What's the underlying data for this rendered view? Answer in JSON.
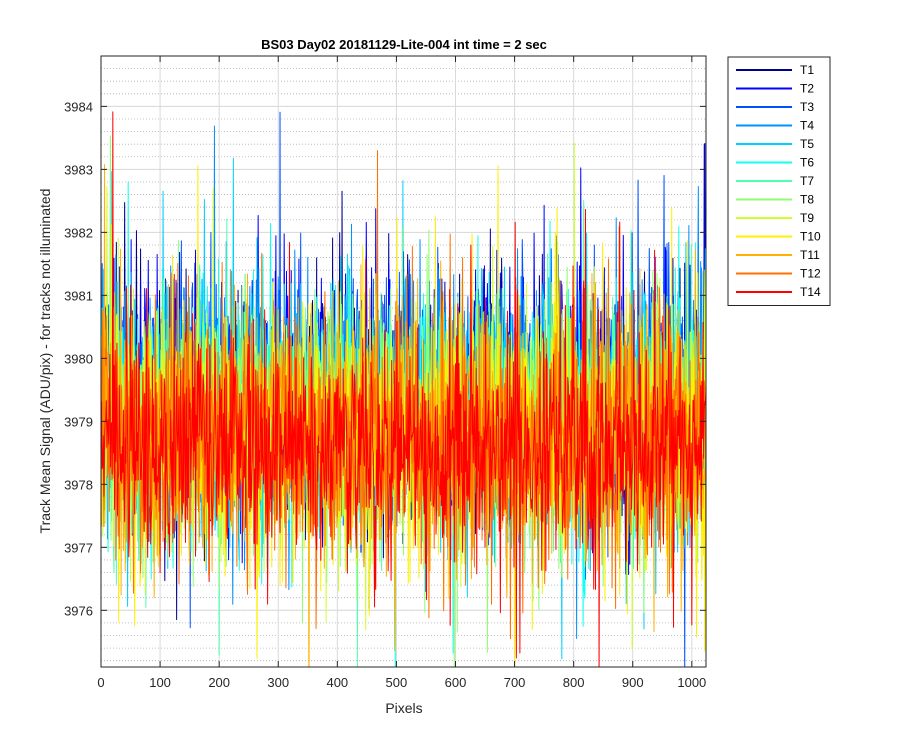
{
  "chart_data": {
    "type": "line",
    "title": "BS03 Day02 20181129-Lite-004 int time = 2 sec",
    "xlabel": "Pixels",
    "ylabel": "Track Mean Signal (ADU/pix) - for tracks not illuminated",
    "xlim": [
      0,
      1024
    ],
    "ylim": [
      3975.1,
      3984.8
    ],
    "x_ticks": [
      0,
      100,
      200,
      300,
      400,
      500,
      600,
      700,
      800,
      900,
      1000
    ],
    "y_ticks": [
      3976,
      3977,
      3978,
      3979,
      3980,
      3981,
      3982,
      3983,
      3984
    ],
    "grid": true,
    "minor_grid_y": true,
    "legend_position": "outside-top-right",
    "n_points_per_series": 1024,
    "series": [
      {
        "name": "T1",
        "color": "#00008F",
        "mean": 3979.3,
        "noise_sd": 1.05,
        "seed": 11
      },
      {
        "name": "T2",
        "color": "#0000FF",
        "mean": 3979.4,
        "noise_sd": 1.05,
        "seed": 23
      },
      {
        "name": "T3",
        "color": "#0050FF",
        "mean": 3979.3,
        "noise_sd": 1.05,
        "seed": 37
      },
      {
        "name": "T4",
        "color": "#0090FF",
        "mean": 3979.2,
        "noise_sd": 1.05,
        "seed": 41
      },
      {
        "name": "T5",
        "color": "#00CFFF",
        "mean": 3979.2,
        "noise_sd": 1.05,
        "seed": 53
      },
      {
        "name": "T6",
        "color": "#10FFEF",
        "mean": 3979.1,
        "noise_sd": 1.05,
        "seed": 67
      },
      {
        "name": "T7",
        "color": "#50FFAF",
        "mean": 3979.0,
        "noise_sd": 1.05,
        "seed": 71
      },
      {
        "name": "T8",
        "color": "#8FFF70",
        "mean": 3979.0,
        "noise_sd": 1.05,
        "seed": 83
      },
      {
        "name": "T9",
        "color": "#CFFF30",
        "mean": 3978.9,
        "noise_sd": 1.05,
        "seed": 97
      },
      {
        "name": "T10",
        "color": "#FFEF00",
        "mean": 3978.8,
        "noise_sd": 1.1,
        "seed": 101
      },
      {
        "name": "T11",
        "color": "#FFB000",
        "mean": 3978.8,
        "noise_sd": 1.1,
        "seed": 113
      },
      {
        "name": "T12",
        "color": "#FF7000",
        "mean": 3978.7,
        "noise_sd": 1.1,
        "seed": 127
      },
      {
        "name": "T14",
        "color": "#FF0000",
        "mean": 3978.6,
        "noise_sd": 1.0,
        "seed": 131
      }
    ]
  }
}
